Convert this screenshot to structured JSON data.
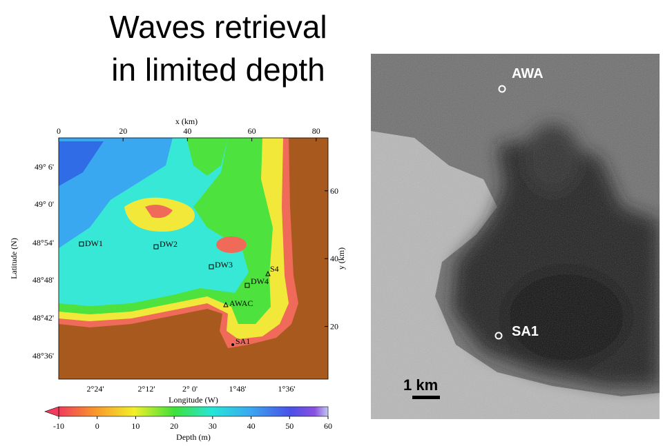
{
  "title": {
    "lines": [
      "Waves retrieval",
      "in limited depth"
    ]
  },
  "depth_map": {
    "x_axis": {
      "label": "x (km)",
      "ticks": [
        0,
        20,
        40,
        60,
        80
      ]
    },
    "y_axis": {
      "label": "y (km)",
      "ticks": [
        20,
        40,
        60
      ]
    },
    "latitude_axis": {
      "label": "Latitude (N)",
      "ticks": [
        "49° 6'",
        "49° 0'",
        "48°54'",
        "48°48'",
        "48°42'",
        "48°36'"
      ]
    },
    "longitude_axis": {
      "label": "Longitude (W)",
      "ticks": [
        "2°24'",
        "2°12'",
        "2° 0'",
        "1°48'",
        "1°36'"
      ]
    },
    "stations": [
      "DW1",
      "DW2",
      "DW3",
      "DW4",
      "S4",
      "AWAC",
      "SA1"
    ],
    "colorbar": {
      "label": "Depth (m)",
      "ticks": [
        -10,
        0,
        10,
        20,
        30,
        40,
        50,
        60
      ]
    }
  },
  "satellite_image": {
    "labels": [
      "AWA",
      "SA1"
    ],
    "scale": "1 km"
  }
}
